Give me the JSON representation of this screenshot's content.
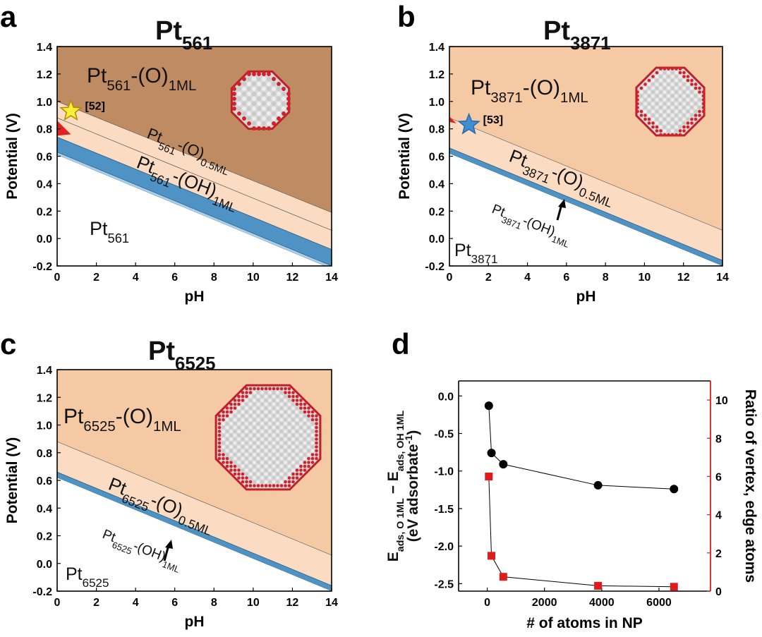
{
  "chart_data": [
    {
      "id": "a",
      "type": "area",
      "panel_label": "a",
      "title": "Pt561",
      "title_base": "Pt",
      "title_sub": "561",
      "xlabel": "pH",
      "ylabel": "Potential (V)",
      "xlim": [
        0,
        14
      ],
      "ylim": [
        -0.2,
        1.4
      ],
      "xticks": [
        "0",
        "2",
        "4",
        "6",
        "8",
        "10",
        "12",
        "14"
      ],
      "yticks": [
        "-0.2",
        "0.0",
        "0.2",
        "0.4",
        "0.6",
        "0.8",
        "1.0",
        "1.2",
        "1.4"
      ],
      "boundaries": [
        {
          "name": "Pt-(OH)1ML lower",
          "v0": 0.63,
          "v14": -0.2
        },
        {
          "name": "Pt-(OH)1ML upper",
          "v0": 0.74,
          "v14": -0.08
        },
        {
          "name": "Pt-(O)0.5ML upper",
          "v0": 0.88,
          "v14": 0.06
        },
        {
          "name": "Pt-(O)1ML lower",
          "v0": 1.0,
          "v14": 0.19
        }
      ],
      "phases": [
        {
          "base": "Pt",
          "sub": "561",
          "suffix": "",
          "end": ""
        },
        {
          "base": "Pt",
          "sub": "561",
          "suffix": "-(OH)",
          "end": "1ML"
        },
        {
          "base": "Pt",
          "sub": "561",
          "suffix": "-(O)",
          "end": "0.5ML"
        },
        {
          "base": "Pt",
          "sub": "561",
          "suffix": "-(O)",
          "end": "1ML"
        }
      ],
      "marker": {
        "shape": "star",
        "color": "#f7ef3a",
        "x": 0.7,
        "y": 0.93,
        "label": "[52]"
      },
      "red_region": true,
      "nanoparticle": "truncated-octahedron-small"
    },
    {
      "id": "b",
      "type": "area",
      "panel_label": "b",
      "title": "Pt3871",
      "title_base": "Pt",
      "title_sub": "3871",
      "xlabel": "pH",
      "ylabel": "Potential (V)",
      "xlim": [
        0,
        14
      ],
      "ylim": [
        -0.2,
        1.4
      ],
      "xticks": [
        "0",
        "2",
        "4",
        "6",
        "8",
        "10",
        "12",
        "14"
      ],
      "yticks": [
        "-0.2",
        "0.0",
        "0.2",
        "0.4",
        "0.6",
        "0.8",
        "1.0",
        "1.2",
        "1.4"
      ],
      "boundaries": [
        {
          "name": "Pt-(OH)1ML lower",
          "v0": 0.62,
          "v14": -0.2
        },
        {
          "name": "Pt-(OH)1ML upper",
          "v0": 0.66,
          "v14": -0.16
        },
        {
          "name": "Pt-(O)1ML lower",
          "v0": 0.88,
          "v14": 0.06
        }
      ],
      "phases": [
        {
          "base": "Pt",
          "sub": "3871",
          "suffix": "",
          "end": ""
        },
        {
          "base": "Pt",
          "sub": "3871",
          "suffix": "-(OH)",
          "end": "1ML"
        },
        {
          "base": "Pt",
          "sub": "3871",
          "suffix": "-(O)",
          "end": "0.5ML"
        },
        {
          "base": "Pt",
          "sub": "3871",
          "suffix": "-(O)",
          "end": "1ML"
        }
      ],
      "marker": {
        "shape": "star",
        "color": "#3f8fd2",
        "x": 1.0,
        "y": 0.83,
        "label": "[53]"
      },
      "red_region": false,
      "nanoparticle": "truncated-octahedron-medium"
    },
    {
      "id": "c",
      "type": "area",
      "panel_label": "c",
      "title": "Pt6525",
      "title_base": "Pt",
      "title_sub": "6525",
      "xlabel": "pH",
      "ylabel": "Potential (V)",
      "xlim": [
        0,
        14
      ],
      "ylim": [
        -0.2,
        1.4
      ],
      "xticks": [
        "0",
        "2",
        "4",
        "6",
        "8",
        "10",
        "12",
        "14"
      ],
      "yticks": [
        "-0.2",
        "0.0",
        "0.2",
        "0.4",
        "0.6",
        "0.8",
        "1.0",
        "1.2",
        "1.4"
      ],
      "boundaries": [
        {
          "name": "Pt-(OH)1ML lower",
          "v0": 0.62,
          "v14": -0.2
        },
        {
          "name": "Pt-(OH)1ML upper",
          "v0": 0.66,
          "v14": -0.16
        },
        {
          "name": "Pt-(O)1ML lower",
          "v0": 0.88,
          "v14": 0.06
        }
      ],
      "phases": [
        {
          "base": "Pt",
          "sub": "6525",
          "suffix": "",
          "end": ""
        },
        {
          "base": "Pt",
          "sub": "6525",
          "suffix": "-(OH)",
          "end": "1ML"
        },
        {
          "base": "Pt",
          "sub": "6525",
          "suffix": "-(O)",
          "end": "0.5ML"
        },
        {
          "base": "Pt",
          "sub": "6525",
          "suffix": "-(O)",
          "end": "1ML"
        }
      ],
      "marker": null,
      "red_region": false,
      "nanoparticle": "truncated-octahedron-large"
    },
    {
      "id": "d",
      "type": "scatter",
      "panel_label": "d",
      "xlabel": "# of atoms in NP",
      "ylabel_left": "E_ads, O 1ML − E_ads, OH 1ML (eV adsorbate^-1)",
      "ylabel_left_parts": {
        "e1": "E",
        "s1": "ads, O 1ML",
        "minus": " − ",
        "e2": "E",
        "s2": "ads, OH 1ML",
        "line2": "(eV adsorbate",
        "exp": "-1",
        "close": ")"
      },
      "ylabel_right": "Ratio of vertex, edge atoms",
      "xlim": [
        -1000,
        7800
      ],
      "ylim_left": [
        -2.6,
        0.2
      ],
      "ylim_right": [
        0,
        11
      ],
      "xticks": [
        "0",
        "2000",
        "4000",
        "6000"
      ],
      "yticks_left": [
        "0.0",
        "-0.5",
        "-1.0",
        "-1.5",
        "-2.0",
        "-2.5"
      ],
      "yticks_right": [
        "0",
        "2",
        "4",
        "6",
        "8",
        "10"
      ],
      "series": [
        {
          "name": "E_ads difference",
          "color": "#000000",
          "marker": "circle",
          "x": [
            55,
            147,
            561,
            3871,
            6525
          ],
          "y": [
            -0.13,
            -0.76,
            -0.91,
            -1.19,
            -1.24
          ]
        },
        {
          "name": "Ratio of vertex, edge atoms",
          "color": "#e01b1b",
          "marker": "square",
          "x": [
            55,
            147,
            561,
            3871,
            6525
          ],
          "y": [
            6.0,
            1.85,
            0.75,
            0.28,
            0.23
          ]
        }
      ]
    }
  ],
  "colors": {
    "o1ml_a": "#bf8b62",
    "o1ml": "#f5c9a4",
    "o05ml": "#fbdcc3",
    "oh": "#4f93c4",
    "oh_light": "#a9d0ec",
    "red": "#e22222",
    "grid": "#444444"
  }
}
